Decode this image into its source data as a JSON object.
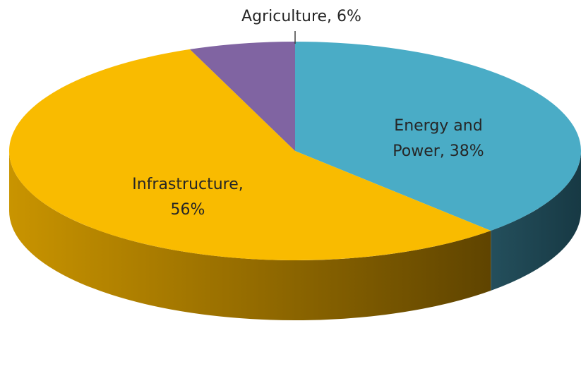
{
  "chart_data": {
    "type": "pie",
    "style": "3d",
    "categories": [
      "Energy and Power",
      "Infrastructure",
      "Agriculture"
    ],
    "values": [
      38,
      56,
      6
    ],
    "unit": "%",
    "colors": [
      "#4aacc6",
      "#f9bb00",
      "#8064a2"
    ],
    "side_colors": [
      "#1f4a57",
      "#7a5a00",
      "#4b3a63"
    ],
    "data_labels": [
      {
        "line1": "Energy and",
        "line2": "Power, 38%"
      },
      {
        "line1": "Infrastructure,",
        "line2": "56%"
      },
      {
        "line1": "Agriculture, 6%",
        "line2": ""
      }
    ],
    "title": "",
    "legend": "none"
  }
}
